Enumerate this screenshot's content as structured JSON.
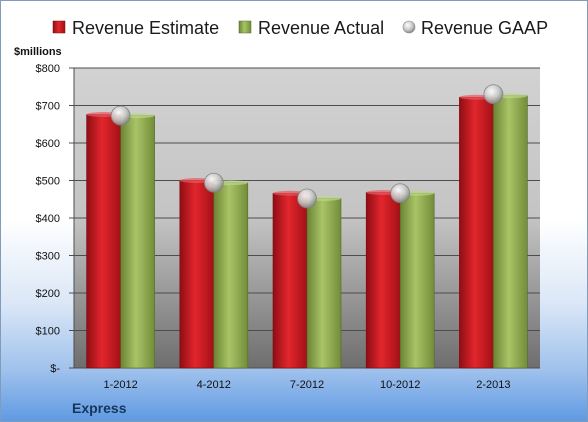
{
  "chart_data": {
    "type": "bar",
    "title": "",
    "company": "Express",
    "unit_label": "$millions",
    "categories": [
      "1-2012",
      "4-2012",
      "7-2012",
      "10-2012",
      "2-2013"
    ],
    "series": [
      {
        "name": "Revenue Estimate",
        "kind": "bar",
        "color": "#c0141c",
        "values": [
          676,
          500,
          466,
          468,
          722
        ]
      },
      {
        "name": "Revenue Actual",
        "kind": "bar",
        "color": "#8faa4a",
        "values": [
          673,
          494,
          452,
          466,
          726
        ]
      },
      {
        "name": "Revenue GAAP",
        "kind": "marker",
        "color": "#b9b9b9",
        "values": [
          673,
          494,
          452,
          466,
          730
        ]
      }
    ],
    "ylim": [
      0,
      800
    ],
    "yticks": [
      0,
      100,
      200,
      300,
      400,
      500,
      600,
      700,
      800
    ],
    "ytick_labels": [
      "$-",
      "$100",
      "$200",
      "$300",
      "$400",
      "$500",
      "$600",
      "$700",
      "$800"
    ],
    "grid": true,
    "legend_position": "top"
  }
}
